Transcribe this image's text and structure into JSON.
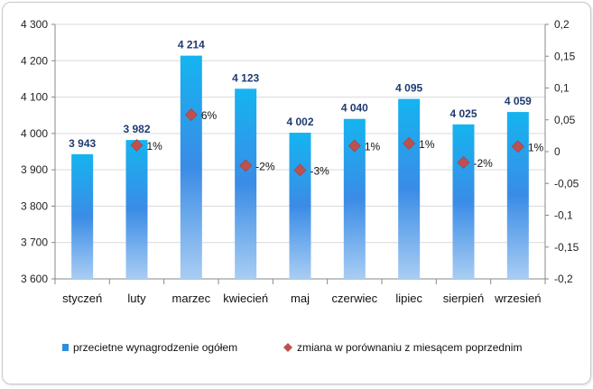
{
  "chart_data": {
    "type": "bar",
    "categories": [
      "styczeń",
      "luty",
      "marzec",
      "kwiecień",
      "maj",
      "czerwiec",
      "lipiec",
      "sierpień",
      "wrzesień"
    ],
    "series": [
      {
        "name": "przecietne wynagrodzenie ogółem",
        "type": "bar",
        "axis": "left",
        "values": [
          3943,
          3982,
          4214,
          4123,
          4002,
          4040,
          4095,
          4025,
          4059
        ],
        "labels": [
          "3 943",
          "3 982",
          "4 214",
          "4 123",
          "4 002",
          "4 040",
          "4 095",
          "4 025",
          "4 059"
        ],
        "color": "#1aa7e8"
      },
      {
        "name": "zmiana w porównaniu z miesącem poprzednim",
        "type": "scatter",
        "axis": "right",
        "values": [
          null,
          0.01,
          0.058,
          -0.022,
          -0.029,
          0.009,
          0.013,
          -0.017,
          0.008
        ],
        "labels": [
          "",
          "1%",
          "6%",
          "-2%",
          "-3%",
          "1%",
          "1%",
          "-2%",
          "1%"
        ],
        "color": "#c0504d"
      }
    ],
    "ylim": [
      3600,
      4300
    ],
    "yticks": [
      "3 600",
      "3 700",
      "3 800",
      "3 900",
      "4 000",
      "4 100",
      "4 200",
      "4 300"
    ],
    "y2lim": [
      -0.2,
      0.2
    ],
    "y2ticks": [
      "-0,2",
      "-0,15",
      "-0,1",
      "-0,05",
      "0",
      "0,05",
      "0,1",
      "0,15",
      "0,2"
    ],
    "grid": true,
    "legend": "bottom"
  }
}
